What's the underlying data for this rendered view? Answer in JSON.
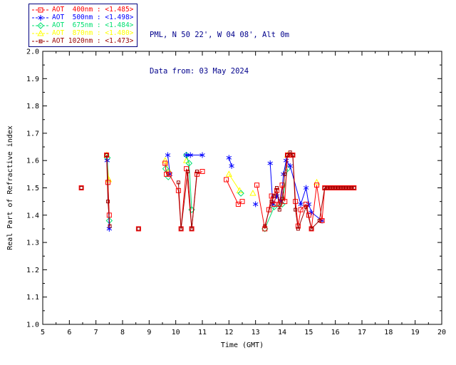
{
  "header": {
    "station": "PML, N 50 22', W 04 08', Alt 0m",
    "date_line": "Data from: 03 May 2024"
  },
  "legend": {
    "border_color": "#000080",
    "entries": [
      {
        "label": "AOT  400nm : <1.485>",
        "color": "#ff0000",
        "marker": "square"
      },
      {
        "label": "AOT  500nm : <1.498>",
        "color": "#0000ff",
        "marker": "asterisk"
      },
      {
        "label": "AOT  675nm : <1.484>",
        "color": "#00e070",
        "marker": "diamond"
      },
      {
        "label": "AOT  870nm : <1.480>",
        "color": "#ffff00",
        "marker": "triangle"
      },
      {
        "label": "AOT 1020nm : <1.473>",
        "color": "#990000",
        "marker": "small-square"
      }
    ]
  },
  "chart_data": {
    "type": "scatter",
    "title": "",
    "xlabel": "Time (GMT)",
    "ylabel": "Real Part of Refractive index",
    "xlim": [
      5,
      20
    ],
    "ylim": [
      1.0,
      2.0
    ],
    "xtick_step": 1,
    "ytick_step": 0.1,
    "grid": false,
    "legend_position": "top-left-outside",
    "series": [
      {
        "name": "AOT 400nm",
        "color": "#ff0000",
        "marker": "square",
        "x": [
          6.45,
          7.4,
          7.45,
          7.5,
          8.6,
          9.6,
          9.65,
          9.75,
          10.1,
          10.2,
          10.4,
          10.6,
          10.8,
          11.0,
          11.9,
          12.35,
          12.5,
          13.05,
          13.35,
          13.5,
          13.6,
          13.7,
          13.8,
          13.9,
          14.0,
          14.1,
          14.2,
          14.3,
          14.4,
          14.5,
          14.6,
          14.7,
          14.9,
          15.0,
          15.1,
          15.3,
          15.5,
          15.6,
          15.7,
          15.8,
          15.9,
          16.0,
          16.1,
          16.2,
          16.3,
          16.4,
          16.5,
          16.6,
          16.7
        ],
        "y": [
          1.5,
          1.62,
          1.52,
          1.4,
          1.35,
          1.59,
          1.55,
          1.55,
          1.49,
          1.35,
          1.57,
          1.35,
          1.55,
          1.56,
          1.53,
          1.44,
          1.45,
          1.51,
          1.35,
          1.42,
          1.47,
          1.44,
          1.49,
          1.44,
          1.51,
          1.45,
          1.62,
          1.62,
          1.62,
          1.45,
          1.36,
          1.42,
          1.44,
          1.4,
          1.35,
          1.51,
          1.38,
          1.5,
          1.5,
          1.5,
          1.5,
          1.5,
          1.5,
          1.5,
          1.5,
          1.5,
          1.5,
          1.5,
          1.5
        ]
      },
      {
        "name": "AOT 500nm",
        "color": "#0000ff",
        "marker": "asterisk",
        "x": [
          7.42,
          7.5,
          9.7,
          9.78,
          10.4,
          10.55,
          11.0,
          12.0,
          12.1,
          13.0,
          13.55,
          13.65,
          13.8,
          13.95,
          14.05,
          14.15,
          14.3,
          14.7,
          14.9,
          15.0,
          15.1,
          15.5
        ],
        "y": [
          1.6,
          1.35,
          1.62,
          1.55,
          1.62,
          1.62,
          1.62,
          1.61,
          1.58,
          1.44,
          1.59,
          1.44,
          1.47,
          1.45,
          1.55,
          1.6,
          1.58,
          1.44,
          1.5,
          1.44,
          1.41,
          1.38
        ]
      },
      {
        "name": "AOT 675nm",
        "color": "#00e070",
        "marker": "diamond",
        "x": [
          7.43,
          7.5,
          9.62,
          9.72,
          10.4,
          10.5,
          10.6,
          12.45,
          13.35,
          13.7,
          14.0,
          14.2
        ],
        "y": [
          1.61,
          1.38,
          1.57,
          1.54,
          1.62,
          1.59,
          1.42,
          1.48,
          1.35,
          1.43,
          1.44,
          1.57
        ]
      },
      {
        "name": "AOT 870nm",
        "color": "#ffff00",
        "marker": "triangle",
        "x": [
          7.41,
          7.48,
          9.6,
          9.75,
          10.4,
          12.0,
          12.4,
          12.9,
          14.2,
          15.3
        ],
        "y": [
          1.62,
          1.53,
          1.6,
          1.56,
          1.6,
          1.55,
          1.49,
          1.48,
          1.62,
          1.52
        ]
      },
      {
        "name": "AOT 1020nm",
        "color": "#990000",
        "marker": "small-square",
        "x": [
          6.45,
          7.4,
          7.45,
          7.52,
          8.6,
          10.1,
          10.2,
          10.45,
          10.6,
          10.8,
          13.35,
          13.6,
          13.7,
          13.8,
          13.9,
          14.0,
          14.1,
          14.2,
          14.3,
          14.4,
          14.5,
          14.6,
          14.9,
          15.1,
          15.4,
          15.6,
          15.7,
          15.8,
          15.9,
          16.0,
          16.1,
          16.2,
          16.3,
          16.4,
          16.5,
          16.6,
          16.7
        ],
        "y": [
          1.5,
          1.62,
          1.45,
          1.36,
          1.35,
          1.52,
          1.35,
          1.56,
          1.35,
          1.56,
          1.36,
          1.45,
          1.47,
          1.5,
          1.42,
          1.46,
          1.55,
          1.62,
          1.63,
          1.62,
          1.42,
          1.35,
          1.43,
          1.35,
          1.38,
          1.5,
          1.5,
          1.5,
          1.5,
          1.5,
          1.5,
          1.5,
          1.5,
          1.5,
          1.5,
          1.5,
          1.5
        ]
      }
    ]
  }
}
